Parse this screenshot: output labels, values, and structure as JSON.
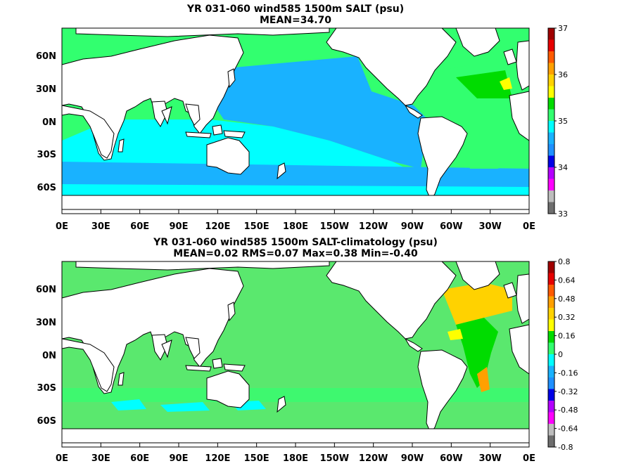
{
  "panels": [
    {
      "title": "YR 031-060 wind585 1500m SALT (psu)",
      "subtitle": "MEAN=34.70",
      "colorbar_ticks": [
        "37",
        "36",
        "35",
        "34",
        "33"
      ]
    },
    {
      "title": "YR 031-060 wind585 1500m SALT-climatology (psu)",
      "subtitle": "MEAN=0.02   RMS=0.07   Max=0.38   Min=-0.40",
      "colorbar_ticks": [
        "0.8",
        "0.64",
        "0.48",
        "0.32",
        "0.16",
        "0",
        "-0.16",
        "-0.32",
        "-0.48",
        "-0.64",
        "-0.8"
      ]
    }
  ],
  "lon_ticks": [
    "0E",
    "30E",
    "60E",
    "90E",
    "120E",
    "150E",
    "180E",
    "150W",
    "120W",
    "90W",
    "60W",
    "30W",
    "0E"
  ],
  "lat_ticks": [
    "60N",
    "30N",
    "0N",
    "30S",
    "60S"
  ],
  "colors": {
    "ocean_top": "#19b2ff",
    "ocean_top_light": "#00ffff",
    "ocean_green": "#32ff6f",
    "ocean_diff": "#5ae86e",
    "land": "#ffffff"
  },
  "colorbar_palette": [
    "#6e6e6e",
    "#bdbdbd",
    "#ff00ff",
    "#b400ff",
    "#0000e6",
    "#1e90ff",
    "#19b2ff",
    "#00ffff",
    "#32ff6f",
    "#00dc00",
    "#ffff00",
    "#ffd200",
    "#ffa000",
    "#ff5a00",
    "#e60000",
    "#a00000"
  ]
}
